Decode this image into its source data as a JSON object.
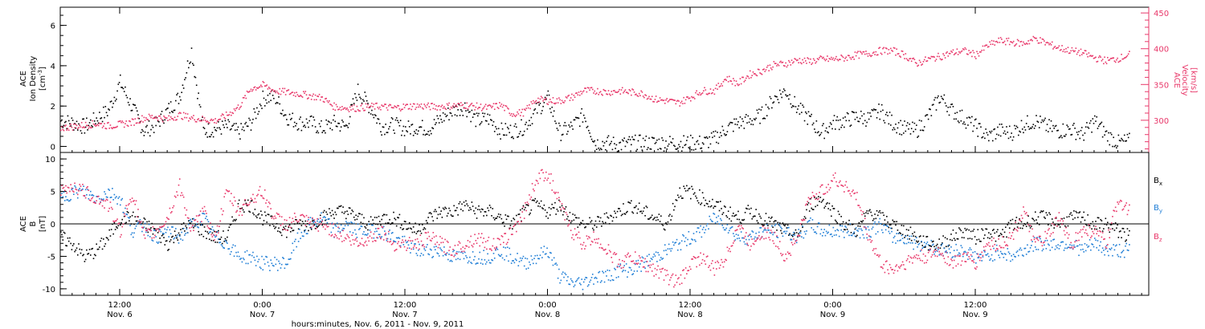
{
  "chart_data": [
    {
      "type": "scatter",
      "panel": "top",
      "ylabel_left": [
        "ACE",
        "Ion Density",
        "[cm",
        "-3",
        "]"
      ],
      "ylabel_right": [
        "ACE",
        "Velocity",
        "[km/s]"
      ],
      "left_axis": {
        "ylim": [
          -0.3,
          6.9
        ],
        "ticks": [
          0,
          2,
          4,
          6
        ]
      },
      "right_axis": {
        "ylim": [
          255,
          458
        ],
        "ticks": [
          300,
          350,
          400,
          450
        ]
      },
      "series": [
        {
          "color": "#000000",
          "axis": "left",
          "x": [
            0,
            1,
            2,
            3,
            4,
            5,
            6,
            7,
            8,
            9,
            10,
            11,
            12,
            13,
            14,
            15,
            16,
            17,
            18,
            19,
            20,
            21,
            22,
            23,
            24,
            25,
            26,
            27,
            28,
            29,
            30,
            31,
            32,
            33,
            34,
            35,
            36,
            37,
            38,
            39,
            40,
            41,
            42,
            43,
            44,
            45,
            46,
            47,
            48,
            49,
            50,
            51,
            52,
            53,
            54,
            55,
            56,
            57,
            58,
            59,
            60,
            61,
            62,
            63,
            64,
            65,
            66,
            67,
            68,
            69,
            70,
            71,
            72,
            73,
            74,
            75,
            76,
            77,
            78,
            79,
            80,
            81,
            82,
            83,
            84,
            85,
            86,
            87,
            88,
            89,
            90
          ],
          "values": [
            1.3,
            1.2,
            1.0,
            1.4,
            1.8,
            3.2,
            2.0,
            0.8,
            1.1,
            1.8,
            2.5,
            4.8,
            0.8,
            0.9,
            1.0,
            0.7,
            1.2,
            2.4,
            2.5,
            1.5,
            1.2,
            1.2,
            0.9,
            1.2,
            1.0,
            2.8,
            2.0,
            1.0,
            1.1,
            0.9,
            1.0,
            0.9,
            1.4,
            1.8,
            2.0,
            1.3,
            1.4,
            0.8,
            0.8,
            1.0,
            1.8,
            2.4,
            0.7,
            1.0,
            1.6,
            0.2,
            0.2,
            0.1,
            0.2,
            0.2,
            0.2,
            0.2,
            0.2,
            0.2,
            0.2,
            0.4,
            0.9,
            1.2,
            1.3,
            1.6,
            2.4,
            2.8,
            1.9,
            1.4,
            0.7,
            1.2,
            1.3,
            1.5,
            1.4,
            1.8,
            1.2,
            0.9,
            0.8,
            1.5,
            2.5,
            1.8,
            1.4,
            1.0,
            0.5,
            0.8,
            0.7,
            1.1,
            1.3,
            1.0,
            0.8,
            0.9,
            0.6,
            1.3,
            0.6,
            0.2,
            0.3
          ]
        },
        {
          "color": "#e8386a",
          "axis": "right",
          "x": [
            0,
            1,
            2,
            3,
            4,
            5,
            6,
            7,
            8,
            9,
            10,
            11,
            12,
            13,
            14,
            15,
            16,
            17,
            18,
            19,
            20,
            21,
            22,
            23,
            24,
            25,
            26,
            27,
            28,
            29,
            30,
            31,
            32,
            33,
            34,
            35,
            36,
            37,
            38,
            39,
            40,
            41,
            42,
            43,
            44,
            45,
            46,
            47,
            48,
            49,
            50,
            51,
            52,
            53,
            54,
            55,
            56,
            57,
            58,
            59,
            60,
            61,
            62,
            63,
            64,
            65,
            66,
            67,
            68,
            69,
            70,
            71,
            72,
            73,
            74,
            75,
            76,
            77,
            78,
            79,
            80,
            81,
            82,
            83,
            84,
            85,
            86,
            87,
            88,
            89,
            90
          ],
          "values": [
            290,
            292,
            294,
            296,
            293,
            295,
            298,
            304,
            306,
            302,
            308,
            304,
            302,
            300,
            308,
            320,
            345,
            350,
            342,
            340,
            338,
            335,
            332,
            320,
            318,
            318,
            320,
            320,
            318,
            320,
            321,
            320,
            320,
            321,
            322,
            320,
            318,
            322,
            310,
            312,
            330,
            328,
            328,
            333,
            342,
            342,
            340,
            342,
            340,
            338,
            330,
            328,
            325,
            333,
            342,
            342,
            360,
            352,
            365,
            370,
            378,
            380,
            385,
            383,
            386,
            386,
            388,
            392,
            394,
            398,
            398,
            392,
            380,
            386,
            390,
            395,
            398,
            392,
            405,
            412,
            410,
            408,
            415,
            408,
            402,
            398,
            395,
            388,
            384,
            387,
            393
          ]
        }
      ],
      "x_unit": "hours since Nov. 6, 2011 07:00"
    },
    {
      "type": "scatter",
      "panel": "bottom",
      "ylabel_left": [
        "ACE",
        "B",
        "[nT]"
      ],
      "ylim": [
        -11,
        11
      ],
      "ticks": [
        -10,
        -5,
        0,
        5,
        10
      ],
      "series": [
        {
          "name": "B",
          "subscript": "x",
          "color": "#000000",
          "x": [
            0,
            1,
            2,
            3,
            4,
            5,
            6,
            7,
            8,
            9,
            10,
            11,
            12,
            13,
            14,
            15,
            16,
            17,
            18,
            19,
            20,
            21,
            22,
            23,
            24,
            25,
            26,
            27,
            28,
            29,
            30,
            31,
            32,
            33,
            34,
            35,
            36,
            37,
            38,
            39,
            40,
            41,
            42,
            43,
            44,
            45,
            46,
            47,
            48,
            49,
            50,
            51,
            52,
            53,
            54,
            55,
            56,
            57,
            58,
            59,
            60,
            61,
            62,
            63,
            64,
            65,
            66,
            67,
            68,
            69,
            70,
            71,
            72,
            73,
            74,
            75,
            76,
            77,
            78,
            79,
            80,
            81,
            82,
            83,
            84,
            85,
            86,
            87,
            88,
            89,
            90
          ],
          "values": [
            -2,
            -3,
            -5,
            -4,
            -2,
            1,
            1,
            0,
            -1,
            -3,
            -1,
            0,
            -1,
            -2,
            -2,
            3,
            3,
            1,
            0,
            -1,
            0,
            0,
            1,
            2,
            2,
            1,
            0,
            1,
            1,
            0,
            -1,
            1,
            2,
            2,
            3,
            2,
            2,
            1,
            0,
            2,
            3,
            2,
            3,
            1,
            0,
            0,
            1,
            2,
            3,
            2,
            1,
            0,
            5,
            5,
            4,
            3,
            2,
            1,
            2,
            1,
            0,
            -1,
            -2,
            3,
            4,
            2,
            0,
            -1,
            2,
            1,
            0,
            -1,
            -2,
            -3,
            -3,
            -2,
            -1,
            -2,
            -1,
            -2,
            0,
            0,
            1,
            1,
            0,
            1,
            1,
            0,
            0,
            -1,
            -2
          ]
        },
        {
          "name": "B",
          "subscript": "y",
          "color": "#1f7ed6",
          "x": [
            0,
            1,
            2,
            3,
            4,
            5,
            6,
            7,
            8,
            9,
            10,
            11,
            12,
            13,
            14,
            15,
            16,
            17,
            18,
            19,
            20,
            21,
            22,
            23,
            24,
            25,
            26,
            27,
            28,
            29,
            30,
            31,
            32,
            33,
            34,
            35,
            36,
            37,
            38,
            39,
            40,
            41,
            42,
            43,
            44,
            45,
            46,
            47,
            48,
            49,
            50,
            51,
            52,
            53,
            54,
            55,
            56,
            57,
            58,
            59,
            60,
            61,
            62,
            63,
            64,
            65,
            66,
            67,
            68,
            69,
            70,
            71,
            72,
            73,
            74,
            75,
            76,
            77,
            78,
            79,
            80,
            81,
            82,
            83,
            84,
            85,
            86,
            87,
            88,
            89,
            90
          ],
          "values": [
            4,
            5,
            5,
            4,
            5,
            4,
            -1,
            0,
            -2,
            -1,
            -2,
            0,
            1,
            -2,
            -3,
            -5,
            -5,
            -6,
            -6,
            -6,
            -2,
            0,
            1,
            -1,
            0,
            -1,
            -1,
            -1,
            -2,
            -3,
            -4,
            -4,
            -4,
            -5,
            -5,
            -5,
            -5,
            -4,
            -5,
            -6,
            -5,
            -4,
            -8,
            -9,
            -9,
            -8,
            -8,
            -7,
            -7,
            -6,
            -5,
            -4,
            -3,
            -2,
            -1,
            1,
            0,
            -2,
            -2,
            -1,
            -1,
            -1,
            -2,
            0,
            -1,
            -1,
            -1,
            -1,
            -1,
            0,
            -2,
            -2,
            -3,
            -3,
            -4,
            -4,
            -4,
            -5,
            -5,
            -4,
            -5,
            -4,
            -3,
            -3,
            -3,
            -3,
            -4,
            -3,
            -4,
            -4,
            -4
          ]
        },
        {
          "name": "B",
          "subscript": "z",
          "color": "#e8386a",
          "x": [
            0,
            1,
            2,
            3,
            4,
            5,
            6,
            7,
            8,
            9,
            10,
            11,
            12,
            13,
            14,
            15,
            16,
            17,
            18,
            19,
            20,
            21,
            22,
            23,
            24,
            25,
            26,
            27,
            28,
            29,
            30,
            31,
            32,
            33,
            34,
            35,
            36,
            37,
            38,
            39,
            40,
            41,
            42,
            43,
            44,
            45,
            46,
            47,
            48,
            49,
            50,
            51,
            52,
            53,
            54,
            55,
            56,
            57,
            58,
            59,
            60,
            61,
            62,
            63,
            64,
            65,
            66,
            67,
            68,
            69,
            70,
            71,
            72,
            73,
            74,
            75,
            76,
            77,
            78,
            79,
            80,
            81,
            82,
            83,
            84,
            85,
            86,
            87,
            88,
            89,
            90
          ],
          "values": [
            5,
            6,
            5,
            4,
            3,
            -1,
            5,
            -2,
            -1,
            1,
            6,
            -1,
            2,
            -2,
            5,
            2,
            4,
            5,
            1,
            0,
            1,
            0,
            0,
            -1,
            -2,
            -3,
            -2,
            -1,
            -3,
            -3,
            -3,
            -2,
            -3,
            -4,
            -3,
            -2,
            -3,
            -3,
            -1,
            2,
            7,
            8,
            3,
            -1,
            -3,
            -2,
            -4,
            -6,
            -5,
            -6,
            -7,
            -8,
            -9,
            -6,
            -5,
            -7,
            -5,
            0,
            -3,
            -1,
            -2,
            -5,
            -2,
            4,
            5,
            7,
            6,
            4,
            -2,
            -6,
            -7,
            -6,
            -5,
            -5,
            -4,
            -6,
            -5,
            -6,
            -3,
            -3,
            -2,
            2,
            -3,
            -2,
            1,
            -3,
            -1,
            -1,
            -3,
            4,
            2
          ]
        }
      ],
      "x_unit": "hours since Nov. 6, 2011 07:00"
    }
  ],
  "x_axis": {
    "ticks": [
      {
        "hours": 5,
        "time": "12:00",
        "date": "Nov. 6"
      },
      {
        "hours": 17,
        "time": "0:00",
        "date": "Nov. 7"
      },
      {
        "hours": 29,
        "time": "12:00",
        "date": "Nov. 7"
      },
      {
        "hours": 41,
        "time": "0:00",
        "date": "Nov. 8"
      },
      {
        "hours": 53,
        "time": "12:00",
        "date": "Nov. 8"
      },
      {
        "hours": 65,
        "time": "0:00",
        "date": "Nov. 9"
      },
      {
        "hours": 77,
        "time": "12:00",
        "date": "Nov. 9"
      }
    ],
    "label": "hours:minutes, Nov.  6, 2011 - Nov.  9, 2011"
  }
}
